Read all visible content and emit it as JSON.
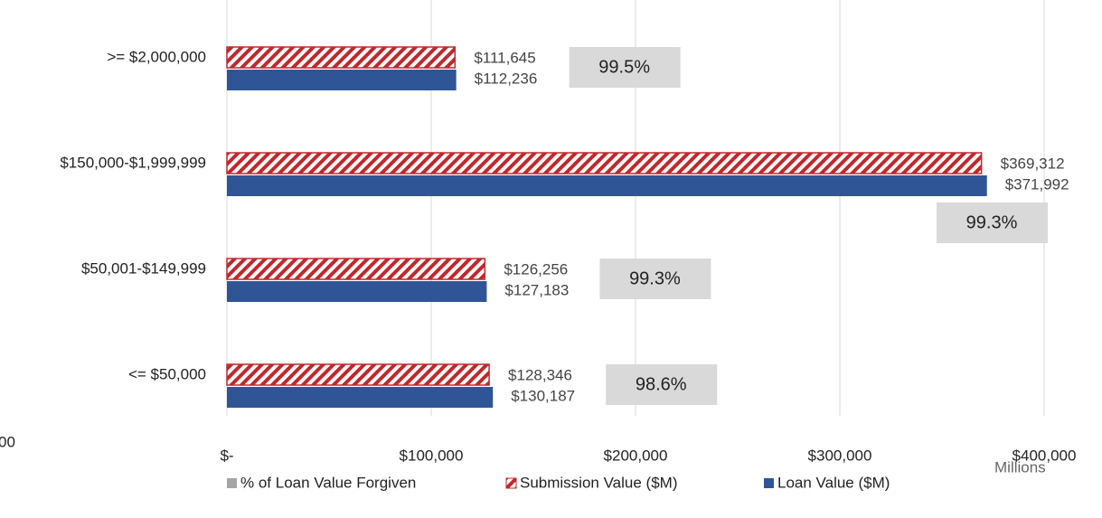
{
  "chart_data": {
    "type": "bar",
    "orientation": "horizontal",
    "categories": [
      ">= $2,000,000",
      "$150,000-$1,999,999",
      "$50,001-$149,999",
      "<= $50,000"
    ],
    "series": [
      {
        "name": "% of Loan Value Forgiven",
        "color": "#a5a5a5",
        "label_box_color": "#d9d9d9",
        "values": [
          99.5,
          99.3,
          99.3,
          98.6
        ],
        "value_labels": [
          "99.5%",
          "99.3%",
          "99.3%",
          "98.6%"
        ],
        "style": "label-box"
      },
      {
        "name": "Submission Value ($M)",
        "color": "#c0282c",
        "pattern": "hatch",
        "values": [
          111645,
          369312,
          126256,
          128346
        ],
        "value_labels": [
          "$111,645",
          "$369,312",
          "$126,256",
          "$128,346"
        ]
      },
      {
        "name": "Loan Value ($M)",
        "color": "#2f5597",
        "values": [
          112236,
          371992,
          127183,
          130187
        ],
        "value_labels": [
          "$112,236",
          "$371,992",
          "$127,183",
          "$130,187"
        ]
      }
    ],
    "xlim": [
      0,
      400000
    ],
    "xticks": [
      {
        "value": 0,
        "label": "$-"
      },
      {
        "value": 100000,
        "label": "$100,000"
      },
      {
        "value": 200000,
        "label": "$200,000"
      },
      {
        "value": 300000,
        "label": "$300,000"
      },
      {
        "value": 400000,
        "label": "$400,000"
      }
    ],
    "x_display_unit": "Millions",
    "annotations": [
      "00"
    ],
    "grid": true,
    "legend": "bottom"
  }
}
